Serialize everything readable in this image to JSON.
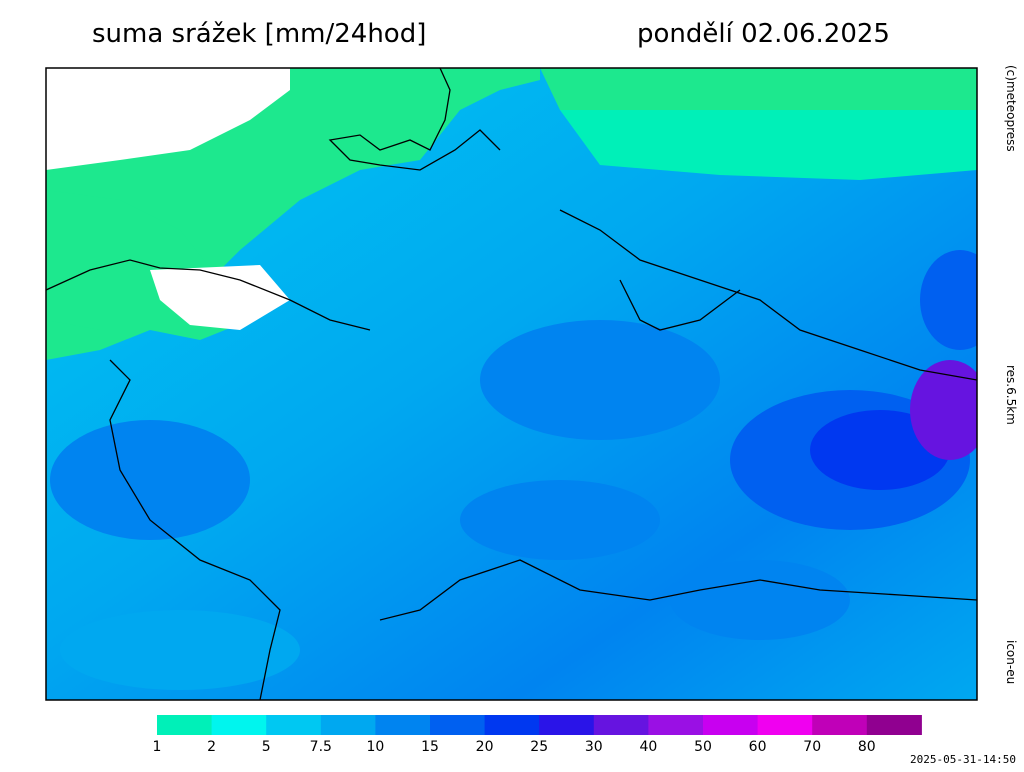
{
  "header": {
    "title": "suma srážek [mm/24hod]",
    "date": "pondělí 02.06.2025"
  },
  "side_labels": {
    "copyright": "(c)meteopress",
    "resolution": "res.6.5km",
    "model": "icon-eu"
  },
  "legend": {
    "labels": [
      "1",
      "2",
      "5",
      "7.5",
      "10",
      "15",
      "20",
      "25",
      "30",
      "40",
      "50",
      "60",
      "70",
      "80"
    ],
    "colors": [
      "#1de88e",
      "#00f0b8",
      "#00f5ee",
      "#00c8f2",
      "#00a8f0",
      "#0084f0",
      "#0060f0",
      "#0038f0",
      "#2a14e8",
      "#6614e0",
      "#9a10e4",
      "#c800f0",
      "#f000f0",
      "#c000b8",
      "#900090"
    ]
  },
  "timestamp": "2025-05-31-14:50"
}
